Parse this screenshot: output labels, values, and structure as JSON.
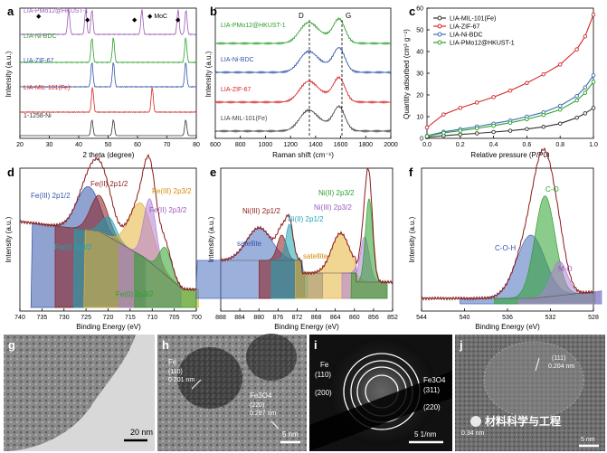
{
  "panels": {
    "a": {
      "letter": "a",
      "xlabel": "2 theta (degree)",
      "ylabel": "Intensity (a.u.)",
      "xticks": [
        "20",
        "30",
        "40",
        "50",
        "60",
        "70",
        "80"
      ],
      "marker_label": "◆ MoC",
      "traces": [
        {
          "name": "LIA-PMo12@HKUST-1",
          "color": "#9b59b6"
        },
        {
          "name": "LIA-Ni-BDC",
          "color": "#2ca02c"
        },
        {
          "name": "LIA-ZIF-67",
          "color": "#3355aa"
        },
        {
          "name": "LIA-MIL-101(Fe)",
          "color": "#d62728"
        },
        {
          "name": "1-1258-Ni",
          "color": "#333333"
        }
      ]
    },
    "b": {
      "letter": "b",
      "xlabel": "Raman shift (cm⁻¹)",
      "ylabel": "Intensity (a.u.)",
      "xticks": [
        "600",
        "800",
        "1000",
        "1200",
        "1400",
        "1600",
        "1800",
        "2000"
      ],
      "peak_d": "D",
      "peak_g": "G",
      "traces": [
        {
          "name": "LIA-PMo12@HKUST-1",
          "color": "#2ca02c"
        },
        {
          "name": "LIA-Ni-BDC",
          "color": "#3355aa"
        },
        {
          "name": "LIA-ZIF-67",
          "color": "#d62728"
        },
        {
          "name": "LIA-MIL-101(Fe)",
          "color": "#444444"
        }
      ]
    },
    "c": {
      "letter": "c",
      "xlabel": "Relative pressure (P/P0)",
      "ylabel": "Quantity adsorbed (cm³ g⁻¹)",
      "xticks": [
        "0.0",
        "0.2",
        "0.4",
        "0.6",
        "0.8",
        "1.0"
      ],
      "yticks": [
        "0",
        "10",
        "20",
        "30",
        "40",
        "50",
        "60"
      ],
      "legend": [
        {
          "name": "LIA-MIL-101(Fe)",
          "color": "#333333"
        },
        {
          "name": "LIA-ZIF-67",
          "color": "#d62728"
        },
        {
          "name": "LIA-Ni-BDC",
          "color": "#3a6fb0"
        },
        {
          "name": "LIA-PMo12@HKUST-1",
          "color": "#2ca02c"
        }
      ]
    },
    "d": {
      "letter": "d",
      "xlabel": "Binding Energy (eV)",
      "ylabel": "Intensity (a.u.)",
      "xticks": [
        "740",
        "735",
        "730",
        "725",
        "720",
        "715",
        "710",
        "705",
        "700"
      ],
      "labels": [
        {
          "text": "Fe(III) 2p1/2",
          "color": "#3355aa"
        },
        {
          "text": "Fe(II) 2p1/2",
          "color": "#8b1a1a"
        },
        {
          "text": "Fe(III) 2p3/2",
          "color": "#d68a00"
        },
        {
          "text": "Fe(II) 2p3/2",
          "color": "#9b59b6"
        },
        {
          "text": "Fe(0) 2p3/2",
          "color": "#1aa5b5"
        },
        {
          "text": "Fe(0) 2p3/2",
          "color": "#2ca02c"
        }
      ]
    },
    "e": {
      "letter": "e",
      "xlabel": "Binding Energy (eV)",
      "ylabel": "Intensity (a.u.)",
      "xticks": [
        "888",
        "884",
        "880",
        "876",
        "872",
        "868",
        "864",
        "860",
        "856",
        "852"
      ],
      "labels": [
        {
          "text": "Ni(III) 2p1/2",
          "color": "#8b1a1a"
        },
        {
          "text": "satellite",
          "color": "#3355aa"
        },
        {
          "text": "Ni(II) 2p1/2",
          "color": "#1aa5b5"
        },
        {
          "text": "Ni(II) 2p3/2",
          "color": "#2ca02c"
        },
        {
          "text": "Ni(III) 2p3/2",
          "color": "#9b59b6"
        },
        {
          "text": "satellite",
          "color": "#d68a00"
        }
      ]
    },
    "f": {
      "letter": "f",
      "xlabel": "Binding Energy (eV)",
      "ylabel": "Intensity (a.u.)",
      "xticks": [
        "544",
        "540",
        "536",
        "532",
        "528"
      ],
      "labels": [
        {
          "text": "C-O",
          "color": "#2ca02c"
        },
        {
          "text": "C-O-H",
          "color": "#3355aa"
        },
        {
          "text": "M-O",
          "color": "#9b59b6"
        }
      ]
    },
    "g": {
      "letter": "g",
      "scale": "20 nm"
    },
    "h": {
      "letter": "h",
      "scale": "5 nm",
      "fe_name": "Fe",
      "fe_plane": "(110)",
      "fe_d": "0.201 nm",
      "fe3o4_name": "Fe3O4",
      "fe3o4_plane": "(220)",
      "fe3o4_d": "0.297 nm"
    },
    "i": {
      "letter": "i",
      "scale": "5 1/nm",
      "fe_name": "Fe",
      "rings": [
        "(110)",
        "(200)",
        "(311)",
        "(220)"
      ],
      "fe3o4_name": "Fe3O4"
    },
    "j": {
      "letter": "j",
      "scale": "5 nm",
      "plane": "(111)",
      "d1": "0.204 nm",
      "d2": "0.34 nm"
    }
  },
  "watermark": "材料科学与工程",
  "chart_data": [
    {
      "type": "line",
      "panel": "a",
      "title": "",
      "xlabel": "2 theta (degree)",
      "ylabel": "Intensity (a.u.)",
      "xlim": [
        20,
        80
      ],
      "series": [
        {
          "name": "LIA-PMo12@HKUST-1",
          "peaks_x": [
            36.6,
            42.4,
            61.5,
            73.8,
            44.5,
            76.5
          ]
        },
        {
          "name": "LIA-Ni-BDC",
          "peaks_x": [
            44.5,
            51.8,
            76.4
          ]
        },
        {
          "name": "LIA-ZIF-67",
          "peaks_x": [
            44.5,
            51.8,
            76.4
          ]
        },
        {
          "name": "LIA-MIL-101(Fe)",
          "peaks_x": [
            44.7,
            65.0,
            82.3
          ]
        },
        {
          "name": "1-1258-Ni",
          "peaks_x": [
            44.5,
            51.8,
            76.4
          ]
        }
      ]
    },
    {
      "type": "line",
      "panel": "b",
      "xlabel": "Raman shift (cm⁻¹)",
      "ylabel": "Intensity (a.u.)",
      "xlim": [
        600,
        2000
      ],
      "series": [
        {
          "name": "LIA-PMo12@HKUST-1",
          "peaks_x": [
            1340,
            1590
          ]
        },
        {
          "name": "LIA-Ni-BDC",
          "peaks_x": [
            1340,
            1590
          ]
        },
        {
          "name": "LIA-ZIF-67",
          "peaks_x": [
            1340,
            1590
          ]
        },
        {
          "name": "LIA-MIL-101(Fe)",
          "peaks_x": [
            1340,
            1590
          ]
        }
      ]
    },
    {
      "type": "line",
      "panel": "c",
      "xlabel": "Relative pressure (P/P0)",
      "ylabel": "Quantity adsorbed (cm³ g⁻¹)",
      "xlim": [
        0,
        1
      ],
      "ylim": [
        0,
        60
      ],
      "x": [
        0.0,
        0.1,
        0.2,
        0.3,
        0.4,
        0.5,
        0.6,
        0.7,
        0.8,
        0.9,
        0.95,
        1.0
      ],
      "series": [
        {
          "name": "LIA-MIL-101(Fe)",
          "values": [
            0.5,
            1.2,
            1.8,
            2.3,
            2.9,
            3.5,
            4.3,
            5.3,
            6.8,
            9.5,
            11.5,
            14.0
          ]
        },
        {
          "name": "LIA-ZIF-67",
          "values": [
            5.0,
            11.0,
            14.0,
            16.5,
            19.0,
            22.0,
            25.5,
            29.5,
            34.0,
            41.0,
            47.0,
            57.0
          ]
        },
        {
          "name": "LIA-Ni-BDC",
          "values": [
            1.2,
            3.0,
            4.2,
            5.4,
            6.8,
            8.2,
            10.0,
            12.0,
            15.0,
            19.5,
            23.5,
            29.0
          ]
        },
        {
          "name": "LIA-PMo12@HKUST-1",
          "values": [
            1.0,
            2.5,
            3.5,
            4.6,
            5.8,
            7.2,
            8.8,
            10.8,
            13.2,
            17.5,
            21.0,
            26.0
          ]
        }
      ]
    },
    {
      "type": "line",
      "panel": "d",
      "xlabel": "Binding Energy (eV)",
      "ylabel": "Intensity (a.u.)",
      "xlim": [
        740,
        700
      ],
      "components": [
        {
          "name": "Fe(III) 2p1/2",
          "center": 724.5
        },
        {
          "name": "Fe(II) 2p1/2",
          "center": 722.0
        },
        {
          "name": "Fe(0) 2p3/2",
          "center": 719.8
        },
        {
          "name": "Fe(III) 2p3/2",
          "center": 712.5
        },
        {
          "name": "Fe(II) 2p3/2",
          "center": 710.5
        },
        {
          "name": "Fe(0) 2p3/2",
          "center": 707.0
        }
      ]
    },
    {
      "type": "line",
      "panel": "e",
      "xlabel": "Binding Energy (eV)",
      "ylabel": "Intensity (a.u.)",
      "xlim": [
        888,
        850
      ],
      "components": [
        {
          "name": "satellite",
          "center": 879.5
        },
        {
          "name": "Ni(III) 2p1/2",
          "center": 874.5
        },
        {
          "name": "Ni(II) 2p1/2",
          "center": 872.8
        },
        {
          "name": "satellite",
          "center": 861.5
        },
        {
          "name": "Ni(III) 2p3/2",
          "center": 856.2
        },
        {
          "name": "Ni(II) 2p3/2",
          "center": 855.2
        }
      ]
    },
    {
      "type": "line",
      "panel": "f",
      "xlabel": "Binding Energy (eV)",
      "ylabel": "Intensity (a.u.)",
      "xlim": [
        544,
        527
      ],
      "components": [
        {
          "name": "C-O-H",
          "center": 533.2
        },
        {
          "name": "C-O",
          "center": 531.8
        },
        {
          "name": "M-O",
          "center": 530.4
        }
      ]
    }
  ]
}
